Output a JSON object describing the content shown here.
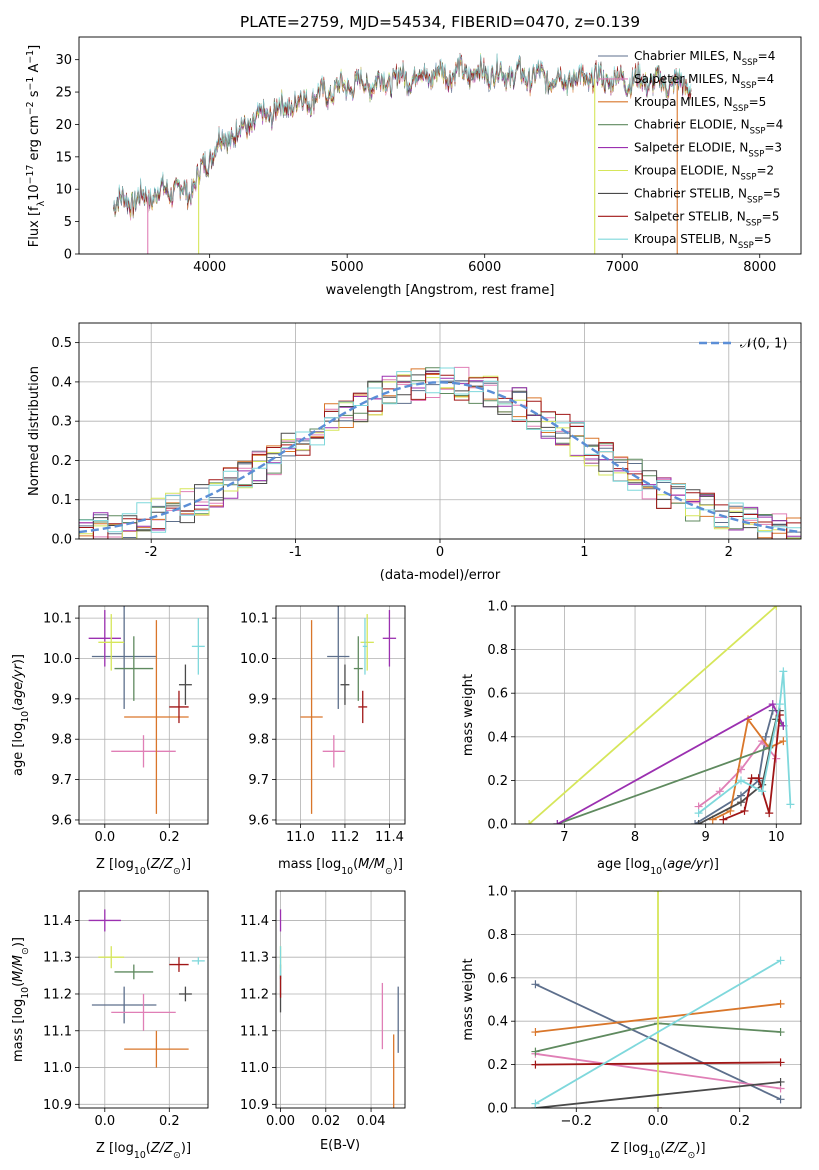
{
  "figure_title": "PLATE=2759, MJD=54534, FIBERID=0470, z=0.139",
  "colors": {
    "Chabrier MILES": "#5d6f8c",
    "Salpeter MILES": "#e07fb6",
    "Kroupa MILES": "#d9762a",
    "Chabrier ELODIE": "#5f8a5f",
    "Salpeter ELODIE": "#9b30b0",
    "Kroupa ELODIE": "#d6e65a",
    "Chabrier STELIB": "#4a4a4a",
    "Salpeter STELIB": "#a01616",
    "Kroupa STELIB": "#7fd8dc"
  },
  "chart_data": [
    {
      "id": "spectrum",
      "type": "line",
      "title": "PLATE=2759, MJD=54534, FIBERID=0470, z=0.139",
      "xlabel": "wavelength [Angstrom, rest frame]",
      "ylabel": "Flux [f_λ 10^-17 erg cm^-2 s^-1 A^-1]",
      "xlim": [
        3050,
        8300
      ],
      "ylim": [
        0,
        33.5
      ],
      "xticks": [
        4000,
        5000,
        6000,
        7000,
        8000
      ],
      "yticks": [
        0,
        5,
        10,
        15,
        20,
        25,
        30
      ],
      "grid": false,
      "legend_position": "right",
      "series": [
        {
          "name": "Chabrier MILES, N_SSP=4",
          "label_main": "Chabrier MILES, N",
          "label_sub": "SSP",
          "label_end": "=4"
        },
        {
          "name": "Salpeter MILES, N_SSP=4",
          "label_main": "Salpeter MILES, N",
          "label_sub": "SSP",
          "label_end": "=4"
        },
        {
          "name": "Kroupa MILES, N_SSP=5",
          "label_main": "Kroupa MILES, N",
          "label_sub": "SSP",
          "label_end": "=5"
        },
        {
          "name": "Chabrier ELODIE, N_SSP=4",
          "label_main": "Chabrier ELODIE, N",
          "label_sub": "SSP",
          "label_end": "=4"
        },
        {
          "name": "Salpeter ELODIE, N_SSP=3",
          "label_main": "Salpeter ELODIE, N",
          "label_sub": "SSP",
          "label_end": "=3"
        },
        {
          "name": "Kroupa ELODIE, N_SSP=2",
          "label_main": "Kroupa ELODIE, N",
          "label_sub": "SSP",
          "label_end": "=2"
        },
        {
          "name": "Chabrier STELIB, N_SSP=5",
          "label_main": "Chabrier STELIB, N",
          "label_sub": "SSP",
          "label_end": "=5"
        },
        {
          "name": "Salpeter STELIB, N_SSP=5",
          "label_main": "Salpeter STELIB, N",
          "label_sub": "SSP",
          "label_end": "=5"
        },
        {
          "name": "Kroupa STELIB, N_SSP=5",
          "label_main": "Kroupa STELIB, N",
          "label_sub": "SSP",
          "label_end": "=5"
        }
      ],
      "continuum": {
        "wavelength": [
          3300,
          3500,
          3700,
          3850,
          3950,
          4050,
          4250,
          4500,
          4800,
          5000,
          5200,
          5500,
          5800,
          6000,
          6300,
          6600,
          7000,
          7300,
          7500
        ],
        "flux": [
          8,
          8.5,
          10,
          9.5,
          13,
          17,
          19.5,
          22.5,
          24.5,
          26,
          26.5,
          27.5,
          28,
          28,
          27.5,
          27,
          27,
          26.5,
          26
        ]
      },
      "edge_drops": [
        {
          "series": "Salpeter MILES",
          "wavelength": 3550
        },
        {
          "series": "Kroupa ELODIE",
          "wavelength": 3920
        },
        {
          "series": "Kroupa ELODIE",
          "wavelength": 6800
        },
        {
          "series": "Kroupa MILES",
          "wavelength": 7400
        }
      ]
    },
    {
      "id": "residual-histogram",
      "type": "bar",
      "xlabel": "(data-model)/error",
      "ylabel": "Normed distribution",
      "xlim": [
        -2.5,
        2.5
      ],
      "ylim": [
        0,
        0.55
      ],
      "xticks": [
        -2,
        -1,
        0,
        1,
        2
      ],
      "yticks": [
        0.0,
        0.1,
        0.2,
        0.3,
        0.4,
        0.5
      ],
      "grid": true,
      "legend_position": "top-right",
      "reference_curve": {
        "name": "𝒩(0, 1)",
        "mean": 0,
        "sigma": 1
      },
      "bin_width": 0.1
    },
    {
      "id": "age-vs-Z",
      "type": "scatter",
      "xlabel": "Z [log10(Z/Z⊙)]",
      "ylabel": "age  [log10(age/yr)]",
      "xlim": [
        -0.08,
        0.32
      ],
      "ylim": [
        9.59,
        10.13
      ],
      "xticks": [
        0.0,
        0.2
      ],
      "yticks": [
        9.6,
        9.7,
        9.8,
        9.9,
        10.0,
        10.1
      ],
      "grid": true,
      "points": [
        {
          "series": "Chabrier MILES",
          "x": 0.06,
          "xerr": 0.1,
          "y": 10.005,
          "yerr": 0.13
        },
        {
          "series": "Salpeter MILES",
          "x": 0.12,
          "xerr": 0.1,
          "y": 9.77,
          "yerr": 0.04
        },
        {
          "series": "Kroupa MILES",
          "x": 0.16,
          "xerr": 0.1,
          "y": 9.855,
          "yerr": 0.24
        },
        {
          "series": "Chabrier ELODIE",
          "x": 0.09,
          "xerr": 0.06,
          "y": 9.975,
          "yerr": 0.08
        },
        {
          "series": "Salpeter ELODIE",
          "x": 0.0,
          "xerr": 0.05,
          "y": 10.05,
          "yerr": 0.07
        },
        {
          "series": "Kroupa ELODIE",
          "x": 0.02,
          "xerr": 0.04,
          "y": 10.04,
          "yerr": 0.07
        },
        {
          "series": "Chabrier STELIB",
          "x": 0.25,
          "xerr": 0.02,
          "y": 9.935,
          "yerr": 0.05
        },
        {
          "series": "Salpeter STELIB",
          "x": 0.23,
          "xerr": 0.03,
          "y": 9.88,
          "yerr": 0.04
        },
        {
          "series": "Kroupa STELIB",
          "x": 0.29,
          "xerr": 0.02,
          "y": 10.03,
          "yerr": 0.07
        }
      ]
    },
    {
      "id": "age-vs-mass",
      "type": "scatter",
      "xlabel": "mass [log10(M/M⊙)]",
      "ylabel": "",
      "xlim": [
        10.89,
        11.47
      ],
      "ylim": [
        9.59,
        10.13
      ],
      "xticks": [
        11.0,
        11.2,
        11.4
      ],
      "yticks": [
        9.6,
        9.7,
        9.8,
        9.9,
        10.0,
        10.1
      ],
      "grid": true,
      "points": [
        {
          "series": "Chabrier MILES",
          "x": 11.17,
          "xerr": 0.05,
          "y": 10.005,
          "yerr": 0.13
        },
        {
          "series": "Salpeter MILES",
          "x": 11.15,
          "xerr": 0.05,
          "y": 9.77,
          "yerr": 0.04
        },
        {
          "series": "Kroupa MILES",
          "x": 11.05,
          "xerr": 0.05,
          "y": 9.855,
          "yerr": 0.24
        },
        {
          "series": "Chabrier ELODIE",
          "x": 11.26,
          "xerr": 0.02,
          "y": 9.975,
          "yerr": 0.08
        },
        {
          "series": "Salpeter ELODIE",
          "x": 11.4,
          "xerr": 0.03,
          "y": 10.05,
          "yerr": 0.07
        },
        {
          "series": "Kroupa ELODIE",
          "x": 11.3,
          "xerr": 0.03,
          "y": 10.04,
          "yerr": 0.07
        },
        {
          "series": "Chabrier STELIB",
          "x": 11.2,
          "xerr": 0.02,
          "y": 9.935,
          "yerr": 0.05
        },
        {
          "series": "Salpeter STELIB",
          "x": 11.28,
          "xerr": 0.02,
          "y": 9.88,
          "yerr": 0.04
        },
        {
          "series": "Kroupa STELIB",
          "x": 11.29,
          "xerr": 0.01,
          "y": 10.03,
          "yerr": 0.07
        }
      ]
    },
    {
      "id": "mass-weight-vs-age",
      "type": "line",
      "xlabel": "age  [log10(age/yr)]",
      "ylabel": "mass weight",
      "xlim": [
        6.3,
        10.35
      ],
      "ylim": [
        0,
        1.0
      ],
      "xticks": [
        7,
        8,
        9,
        10
      ],
      "yticks": [
        0.0,
        0.2,
        0.4,
        0.6,
        0.8,
        1.0
      ],
      "grid": true,
      "series": [
        {
          "name": "Chabrier MILES",
          "x": [
            8.85,
            9.5,
            9.75,
            9.85,
            9.95
          ],
          "y": [
            0.0,
            0.13,
            0.2,
            0.4,
            0.52
          ]
        },
        {
          "name": "Salpeter MILES",
          "x": [
            8.9,
            9.2,
            9.5,
            9.8,
            10.0
          ],
          "y": [
            0.08,
            0.15,
            0.25,
            0.38,
            0.3
          ]
        },
        {
          "name": "Kroupa MILES",
          "x": [
            9.1,
            9.35,
            9.6,
            9.9,
            10.1
          ],
          "y": [
            0.02,
            0.06,
            0.48,
            0.35,
            0.38
          ]
        },
        {
          "name": "Chabrier ELODIE",
          "x": [
            6.9,
            9.9,
            10.0,
            10.1
          ],
          "y": [
            0.0,
            0.35,
            0.48,
            0.45
          ]
        },
        {
          "name": "Salpeter ELODIE",
          "x": [
            6.9,
            9.95,
            10.1
          ],
          "y": [
            0.0,
            0.55,
            0.45
          ]
        },
        {
          "name": "Kroupa ELODIE",
          "x": [
            6.5,
            10.0
          ],
          "y": [
            0.0,
            1.0
          ]
        },
        {
          "name": "Chabrier STELIB",
          "x": [
            8.9,
            9.5,
            9.8,
            10.0,
            10.05
          ],
          "y": [
            0.0,
            0.1,
            0.18,
            0.48,
            0.52
          ]
        },
        {
          "name": "Salpeter STELIB",
          "x": [
            9.25,
            9.55,
            9.65,
            9.75,
            9.9,
            10.05
          ],
          "y": [
            0.02,
            0.06,
            0.21,
            0.21,
            0.05,
            0.5
          ]
        },
        {
          "name": "Kroupa STELIB",
          "x": [
            8.9,
            9.5,
            9.8,
            10.05,
            10.1,
            10.2
          ],
          "y": [
            0.05,
            0.2,
            0.15,
            0.55,
            0.7,
            0.09
          ]
        }
      ]
    },
    {
      "id": "mass-vs-Z",
      "type": "scatter",
      "xlabel": "Z [log10(Z/Z⊙)]",
      "ylabel": "mass [log10(M/M⊙)]",
      "xlim": [
        -0.08,
        0.32
      ],
      "ylim": [
        10.89,
        11.48
      ],
      "xticks": [
        0.0,
        0.2
      ],
      "yticks": [
        10.9,
        11.0,
        11.1,
        11.2,
        11.3,
        11.4
      ],
      "grid": true,
      "points": [
        {
          "series": "Chabrier MILES",
          "x": 0.06,
          "xerr": 0.1,
          "y": 11.17,
          "yerr": 0.05
        },
        {
          "series": "Salpeter MILES",
          "x": 0.12,
          "xerr": 0.1,
          "y": 11.15,
          "yerr": 0.05
        },
        {
          "series": "Kroupa MILES",
          "x": 0.16,
          "xerr": 0.1,
          "y": 11.05,
          "yerr": 0.05
        },
        {
          "series": "Chabrier ELODIE",
          "x": 0.09,
          "xerr": 0.06,
          "y": 11.26,
          "yerr": 0.02
        },
        {
          "series": "Salpeter ELODIE",
          "x": 0.0,
          "xerr": 0.05,
          "y": 11.4,
          "yerr": 0.03
        },
        {
          "series": "Kroupa ELODIE",
          "x": 0.02,
          "xerr": 0.04,
          "y": 11.3,
          "yerr": 0.03
        },
        {
          "series": "Chabrier STELIB",
          "x": 0.25,
          "xerr": 0.02,
          "y": 11.2,
          "yerr": 0.02
        },
        {
          "series": "Salpeter STELIB",
          "x": 0.23,
          "xerr": 0.03,
          "y": 11.28,
          "yerr": 0.02
        },
        {
          "series": "Kroupa STELIB",
          "x": 0.29,
          "xerr": 0.02,
          "y": 11.29,
          "yerr": 0.01
        }
      ]
    },
    {
      "id": "mass-vs-EBV",
      "type": "scatter",
      "xlabel": "E(B-V)",
      "ylabel": "",
      "xlim": [
        -0.002,
        0.055
      ],
      "ylim": [
        10.89,
        11.48
      ],
      "xticks": [
        0.0,
        0.02,
        0.04
      ],
      "yticks": [
        10.9,
        11.0,
        11.1,
        11.2,
        11.3,
        11.4
      ],
      "grid": true,
      "points": [
        {
          "series": "Chabrier MILES",
          "x": 0.052,
          "xerr": 0.0,
          "y": 11.13,
          "yerr": 0.09
        },
        {
          "series": "Salpeter MILES",
          "x": 0.045,
          "xerr": 0.0,
          "y": 11.14,
          "yerr": 0.09
        },
        {
          "series": "Kroupa MILES",
          "x": 0.05,
          "xerr": 0.0,
          "y": 10.98,
          "yerr": 0.11
        },
        {
          "series": "Chabrier ELODIE",
          "x": 0.0,
          "xerr": 0.0,
          "y": 11.26,
          "yerr": 0.02
        },
        {
          "series": "Salpeter ELODIE",
          "x": 0.0,
          "xerr": 0.0,
          "y": 11.4,
          "yerr": 0.03
        },
        {
          "series": "Kroupa ELODIE",
          "x": 0.0,
          "xerr": 0.0,
          "y": 11.3,
          "yerr": 0.03
        },
        {
          "series": "Chabrier STELIB",
          "x": 0.0,
          "xerr": 0.0,
          "y": 11.2,
          "yerr": 0.05
        },
        {
          "series": "Salpeter STELIB",
          "x": 0.0,
          "xerr": 0.0,
          "y": 11.22,
          "yerr": 0.03
        },
        {
          "series": "Kroupa STELIB",
          "x": 0.0,
          "xerr": 0.0,
          "y": 11.29,
          "yerr": 0.04
        }
      ]
    },
    {
      "id": "mass-weight-vs-Z",
      "type": "line",
      "xlabel": "Z [log10(Z/Z⊙)]",
      "ylabel": "mass weight",
      "xlim": [
        -0.35,
        0.35
      ],
      "ylim": [
        0,
        1.0
      ],
      "xticks": [
        -0.2,
        0.0,
        0.2
      ],
      "yticks": [
        0.0,
        0.2,
        0.4,
        0.6,
        0.8,
        1.0
      ],
      "grid": true,
      "series": [
        {
          "name": "Chabrier MILES",
          "x": [
            -0.3,
            0.3
          ],
          "y": [
            0.57,
            0.04
          ]
        },
        {
          "name": "Salpeter MILES",
          "x": [
            -0.3,
            0.3
          ],
          "y": [
            0.25,
            0.09
          ]
        },
        {
          "name": "Kroupa MILES",
          "x": [
            -0.3,
            0.3
          ],
          "y": [
            0.35,
            0.48
          ]
        },
        {
          "name": "Chabrier ELODIE",
          "x": [
            -0.3,
            0.0,
            0.3
          ],
          "y": [
            0.26,
            0.39,
            0.35
          ]
        },
        {
          "name": "Salpeter ELODIE",
          "x": [
            0.0,
            0.0
          ],
          "y": [
            0.0,
            0.0
          ]
        },
        {
          "name": "Kroupa ELODIE",
          "x": [
            0.0,
            0.0
          ],
          "y": [
            0.0,
            1.0
          ]
        },
        {
          "name": "Chabrier STELIB",
          "x": [
            -0.3,
            0.3
          ],
          "y": [
            0.0,
            0.12
          ]
        },
        {
          "name": "Salpeter STELIB",
          "x": [
            -0.3,
            0.3
          ],
          "y": [
            0.2,
            0.21
          ]
        },
        {
          "name": "Kroupa STELIB",
          "x": [
            -0.3,
            0.3
          ],
          "y": [
            0.02,
            0.68
          ]
        }
      ]
    }
  ]
}
